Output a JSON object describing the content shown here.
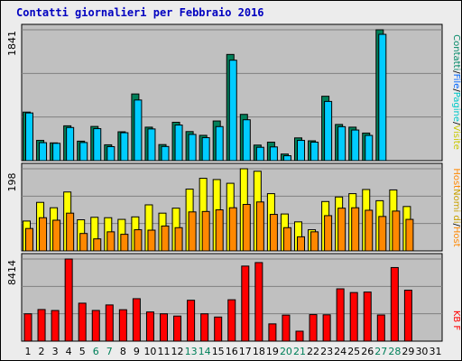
{
  "page": {
    "title": "Contatti giornalieri per Febbraio 2016"
  },
  "legend": {
    "top": [
      {
        "text": "Contatti",
        "color": "#008866"
      },
      {
        "text": "/",
        "color": "#000000"
      },
      {
        "text": "File",
        "color": "#0066ff"
      },
      {
        "text": "/",
        "color": "#000000"
      },
      {
        "text": "Pagine",
        "color": "#00c8c8"
      },
      {
        "text": "/",
        "color": "#000000"
      },
      {
        "text": "Visite",
        "color": "#c8c800"
      }
    ],
    "middle": [
      {
        "text": "Host",
        "color": "#ff8800"
      },
      {
        "text": "Nomi di",
        "color": "#c8a000"
      },
      {
        "text": "/",
        "color": "#000000"
      },
      {
        "text": "Host",
        "color": "#ff8800"
      }
    ]
  },
  "colors": {
    "hits": "#00805a",
    "files": "#00ccff",
    "visits": "#ffff00",
    "sites": "#ff8800",
    "kbytes": "#ff0000",
    "panel_bg": "#c0c0c0",
    "grid": "#808080",
    "weekend_label": "#00805a"
  },
  "chart_data": [
    {
      "type": "bar",
      "title": "Contatti giornalieri per Febbraio 2016",
      "axis_max_label": "1841",
      "ylim": [
        0,
        1841
      ],
      "grid": true,
      "categories": [
        "1",
        "2",
        "3",
        "4",
        "5",
        "6",
        "7",
        "8",
        "9",
        "10",
        "11",
        "12",
        "13",
        "14",
        "15",
        "16",
        "17",
        "18",
        "19",
        "20",
        "21",
        "22",
        "23",
        "24",
        "25",
        "26",
        "27",
        "28",
        "29",
        "30",
        "31"
      ],
      "weekend_days": [
        "6",
        "7",
        "13",
        "14",
        "20",
        "21",
        "27",
        "28"
      ],
      "series": [
        {
          "name": "Contatti",
          "values": [
            683,
            285,
            250,
            490,
            274,
            481,
            223,
            406,
            938,
            471,
            226,
            540,
            409,
            356,
            558,
            1494,
            651,
            219,
            260,
            93,
            320,
            279,
            906,
            509,
            471,
            388,
            1841,
            0,
            0,
            0,
            0
          ]
        },
        {
          "name": "File",
          "values": [
            671,
            253,
            244,
            466,
            255,
            450,
            197,
            393,
            853,
            446,
            199,
            501,
            369,
            323,
            479,
            1413,
            575,
            188,
            193,
            69,
            285,
            260,
            833,
            478,
            431,
            355,
            1777,
            0,
            0,
            0,
            0
          ]
        }
      ]
    },
    {
      "type": "bar",
      "axis_max_label": "198",
      "ylim": [
        0,
        198
      ],
      "grid": true,
      "categories": [
        "1",
        "2",
        "3",
        "4",
        "5",
        "6",
        "7",
        "8",
        "9",
        "10",
        "11",
        "12",
        "13",
        "14",
        "15",
        "16",
        "17",
        "18",
        "19",
        "20",
        "21",
        "22",
        "23",
        "24",
        "25",
        "26",
        "27",
        "28",
        "29",
        "30",
        "31"
      ],
      "series": [
        {
          "name": "Visite",
          "values": [
            72,
            117,
            104,
            142,
            75,
            81,
            80,
            76,
            82,
            111,
            91,
            103,
            149,
            175,
            172,
            163,
            198,
            192,
            138,
            89,
            70,
            51,
            119,
            130,
            138,
            148,
            121,
            147,
            107,
            0,
            0
          ]
        },
        {
          "name": "Host",
          "values": [
            54,
            80,
            74,
            91,
            42,
            29,
            46,
            40,
            51,
            50,
            60,
            56,
            94,
            95,
            99,
            104,
            112,
            118,
            88,
            56,
            34,
            46,
            85,
            103,
            104,
            98,
            83,
            96,
            76,
            0,
            0
          ]
        }
      ]
    },
    {
      "type": "bar",
      "axis_max_label": "8414",
      "ylim": [
        0,
        8414
      ],
      "grid": true,
      "categories": [
        "1",
        "2",
        "3",
        "4",
        "5",
        "6",
        "7",
        "8",
        "9",
        "10",
        "11",
        "12",
        "13",
        "14",
        "15",
        "16",
        "17",
        "18",
        "19",
        "20",
        "21",
        "22",
        "23",
        "24",
        "25",
        "26",
        "27",
        "28",
        "29",
        "30",
        "31"
      ],
      "series": [
        {
          "name": "KB F",
          "values": [
            2800,
            3240,
            3140,
            8414,
            3890,
            3145,
            3710,
            3220,
            4350,
            2990,
            2800,
            2570,
            4190,
            2800,
            2470,
            4240,
            7690,
            8050,
            1770,
            2670,
            1020,
            2720,
            2700,
            5360,
            4980,
            5030,
            2680,
            7540,
            5220,
            0,
            0
          ]
        }
      ]
    }
  ]
}
